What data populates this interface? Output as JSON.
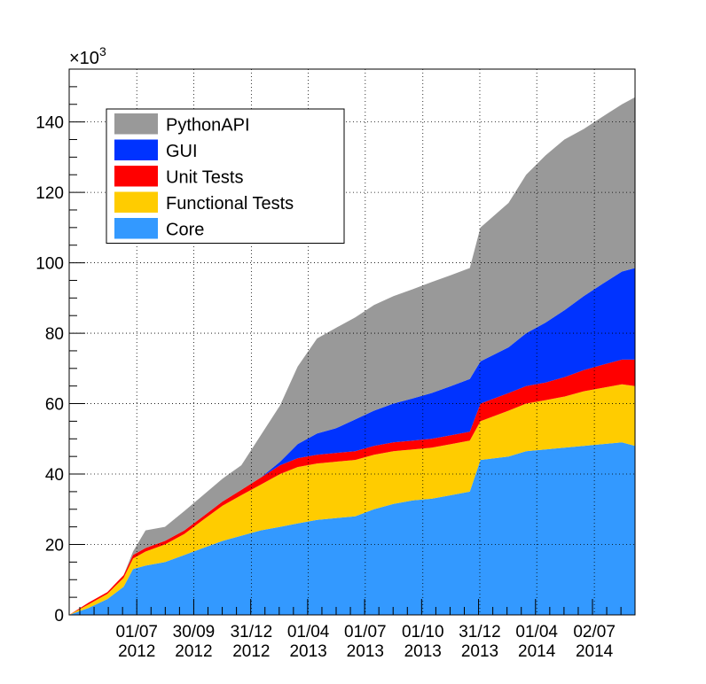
{
  "chart_data": {
    "type": "area",
    "stacked": true,
    "title": "",
    "xlabel": "",
    "ylabel": "",
    "y_multiplier_label": "×10",
    "y_multiplier_exponent": "3",
    "ylim": [
      0,
      155000
    ],
    "xlim": [
      "2012-03-15",
      "2014-09-05"
    ],
    "grid": true,
    "legend_position": "top-left",
    "y_ticks": [
      "0",
      "20",
      "40",
      "60",
      "80",
      "100",
      "120",
      "140"
    ],
    "x_ticks": [
      {
        "date": "2012-07-01",
        "label": "01/07",
        "year": "2012"
      },
      {
        "date": "2012-09-30",
        "label": "30/09",
        "year": "2012"
      },
      {
        "date": "2012-12-31",
        "label": "31/12",
        "year": "2012"
      },
      {
        "date": "2013-04-01",
        "label": "01/04",
        "year": "2013"
      },
      {
        "date": "2013-07-01",
        "label": "01/07",
        "year": "2013"
      },
      {
        "date": "2013-10-01",
        "label": "01/10",
        "year": "2013"
      },
      {
        "date": "2013-12-31",
        "label": "31/12",
        "year": "2013"
      },
      {
        "date": "2014-04-01",
        "label": "01/04",
        "year": "2014"
      },
      {
        "date": "2014-07-02",
        "label": "02/07",
        "year": "2014"
      }
    ],
    "x": [
      "2012-03-15",
      "2012-04-15",
      "2012-05-15",
      "2012-06-10",
      "2012-06-25",
      "2012-07-15",
      "2012-08-15",
      "2012-09-15",
      "2012-10-15",
      "2012-11-15",
      "2012-12-15",
      "2013-01-15",
      "2013-02-15",
      "2013-03-15",
      "2013-04-15",
      "2013-05-15",
      "2013-06-15",
      "2013-07-15",
      "2013-08-15",
      "2013-09-15",
      "2013-10-15",
      "2013-11-15",
      "2013-12-15",
      "2014-01-01",
      "2014-02-15",
      "2014-03-15",
      "2014-04-15",
      "2014-05-15",
      "2014-06-15",
      "2014-07-15",
      "2014-08-15",
      "2014-09-05"
    ],
    "series": [
      {
        "name": "Core",
        "color": "#3399ff",
        "values": [
          0,
          2000,
          4500,
          8000,
          13000,
          14000,
          15000,
          17000,
          19000,
          21000,
          22500,
          24000,
          25000,
          26000,
          27000,
          27500,
          28000,
          30000,
          31500,
          32500,
          33000,
          34000,
          35000,
          44000,
          45000,
          46500,
          47000,
          47500,
          48000,
          48500,
          49000,
          48000
        ]
      },
      {
        "name": "Functional Tests",
        "color": "#ffcc00",
        "values": [
          0,
          1000,
          1500,
          2500,
          3000,
          4000,
          5000,
          6000,
          8000,
          10000,
          11500,
          13000,
          15000,
          16000,
          16000,
          16000,
          16000,
          15500,
          15000,
          14500,
          14500,
          14500,
          14500,
          11000,
          13000,
          13500,
          14000,
          14500,
          15500,
          16000,
          16500,
          17000
        ]
      },
      {
        "name": "Unit Tests",
        "color": "#ff0000",
        "values": [
          0,
          500,
          500,
          800,
          1000,
          1000,
          1000,
          1000,
          1000,
          1200,
          1500,
          2000,
          2500,
          2500,
          2500,
          2500,
          2500,
          2500,
          2500,
          2500,
          2500,
          2500,
          2500,
          5000,
          5000,
          5000,
          5000,
          5500,
          6000,
          6500,
          7000,
          7500
        ]
      },
      {
        "name": "GUI",
        "color": "#0033ff",
        "values": [
          0,
          0,
          0,
          0,
          0,
          0,
          0,
          0,
          0,
          0,
          0,
          0,
          1000,
          4000,
          6000,
          7000,
          9000,
          10000,
          11000,
          12000,
          13000,
          14000,
          15000,
          12000,
          13000,
          15000,
          17000,
          19000,
          21000,
          23000,
          25000,
          26000
        ]
      },
      {
        "name": "PythonAPI",
        "color": "#999999",
        "values": [
          0,
          0,
          0,
          0,
          1000,
          5000,
          4000,
          5500,
          6000,
          6500,
          7000,
          12000,
          16000,
          22000,
          27000,
          28500,
          29000,
          30000,
          30500,
          31000,
          31500,
          31500,
          31500,
          38000,
          41000,
          45000,
          47500,
          48500,
          47500,
          47500,
          47500,
          48500
        ]
      }
    ]
  }
}
